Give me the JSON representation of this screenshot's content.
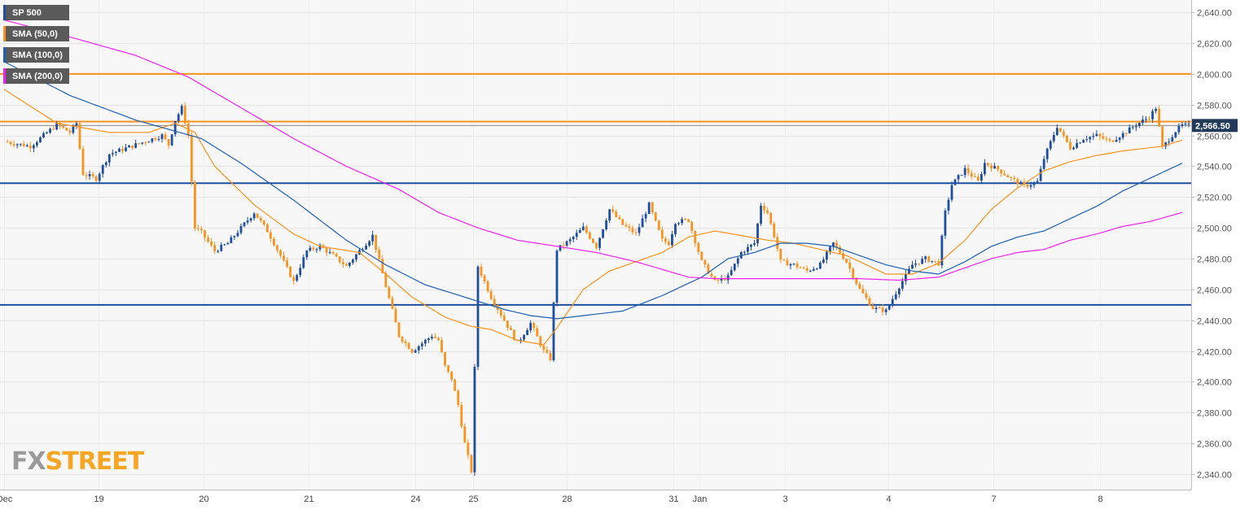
{
  "colors": {
    "up": "#1f4e9c",
    "down": "#f7931e",
    "sma50": "#f7931e",
    "sma100": "#1f5fae",
    "sma200": "#ee22ee",
    "resistance": "#f7931e",
    "support": "#1f4e9c",
    "price_badge": "#233a5a",
    "background": "#f7f7f7"
  },
  "legend": [
    {
      "label": "SP 500",
      "color": "#1f4e9c"
    },
    {
      "label": "SMA (50,0)",
      "color": "#f7931e"
    },
    {
      "label": "SMA (100,0)",
      "color": "#1f5fae"
    },
    {
      "label": "SMA (200,0)",
      "color": "#ee22ee"
    }
  ],
  "logo": {
    "fx": "FX",
    "street": "STREET"
  },
  "chart_data": {
    "type": "candlestick",
    "title": "SP 500",
    "ylim": [
      2330,
      2648
    ],
    "y_ticks": [
      "2,340.00",
      "2,360.00",
      "2,380.00",
      "2,400.00",
      "2,420.00",
      "2,440.00",
      "2,460.00",
      "2,480.00",
      "2,500.00",
      "2,520.00",
      "2,540.00",
      "2,560.00",
      "2,580.00",
      "2,600.00",
      "2,620.00",
      "2,640.00"
    ],
    "y_tick_values": [
      2340,
      2360,
      2380,
      2400,
      2420,
      2440,
      2460,
      2480,
      2500,
      2520,
      2540,
      2560,
      2580,
      2600,
      2620,
      2640
    ],
    "x_ticks": [
      {
        "label": "Dec",
        "t": 0
      },
      {
        "label": "19",
        "t": 14.3
      },
      {
        "label": "20",
        "t": 30.3
      },
      {
        "label": "21",
        "t": 46.3
      },
      {
        "label": "24",
        "t": 62.5
      },
      {
        "label": "25",
        "t": 71.3
      },
      {
        "label": "28",
        "t": 85.5
      },
      {
        "label": "31",
        "t": 101.7
      },
      {
        "label": "Jan",
        "t": 105.6
      },
      {
        "label": "3",
        "t": 118.7
      },
      {
        "label": "4",
        "t": 134.4
      },
      {
        "label": "7",
        "t": 150.3
      },
      {
        "label": "8",
        "t": 166.5
      }
    ],
    "t_max": 180,
    "last_price": "2,566.50",
    "last_value": 2566.5,
    "horizontal_levels": [
      {
        "value": 2600,
        "kind": "resistance"
      },
      {
        "value": 2569,
        "kind": "resistance"
      },
      {
        "value": 2529,
        "kind": "support"
      },
      {
        "value": 2450,
        "kind": "support"
      }
    ],
    "price_anchors": [
      [
        0,
        2556
      ],
      [
        4,
        2553
      ],
      [
        8,
        2567
      ],
      [
        10,
        2562
      ],
      [
        11,
        2568
      ],
      [
        12,
        2535
      ],
      [
        14,
        2532
      ],
      [
        16,
        2548
      ],
      [
        20,
        2554
      ],
      [
        24,
        2560
      ],
      [
        25,
        2554
      ],
      [
        26,
        2570
      ],
      [
        27,
        2578
      ],
      [
        28,
        2560
      ],
      [
        29,
        2500
      ],
      [
        30,
        2497
      ],
      [
        32,
        2485
      ],
      [
        34,
        2490
      ],
      [
        38,
        2510
      ],
      [
        40,
        2498
      ],
      [
        42,
        2482
      ],
      [
        44,
        2465
      ],
      [
        46,
        2485
      ],
      [
        48,
        2488
      ],
      [
        50,
        2482
      ],
      [
        52,
        2475
      ],
      [
        56,
        2495
      ],
      [
        58,
        2462
      ],
      [
        60,
        2430
      ],
      [
        62,
        2420
      ],
      [
        65,
        2430
      ],
      [
        66,
        2427
      ],
      [
        67,
        2410
      ],
      [
        68,
        2402
      ],
      [
        69,
        2385
      ],
      [
        70,
        2360
      ],
      [
        71,
        2342
      ],
      [
        72,
        2475
      ],
      [
        74,
        2455
      ],
      [
        76,
        2440
      ],
      [
        78,
        2425
      ],
      [
        80,
        2438
      ],
      [
        82,
        2420
      ],
      [
        83,
        2415
      ],
      [
        84,
        2486
      ],
      [
        86,
        2492
      ],
      [
        88,
        2500
      ],
      [
        90,
        2488
      ],
      [
        92,
        2512
      ],
      [
        94,
        2502
      ],
      [
        96,
        2496
      ],
      [
        98,
        2515
      ],
      [
        100,
        2492
      ],
      [
        101,
        2490
      ],
      [
        102,
        2504
      ],
      [
        104,
        2505
      ],
      [
        106,
        2478
      ],
      [
        108,
        2465
      ],
      [
        110,
        2468
      ],
      [
        112,
        2484
      ],
      [
        114,
        2490
      ],
      [
        115,
        2515
      ],
      [
        116,
        2510
      ],
      [
        117,
        2495
      ],
      [
        118,
        2478
      ],
      [
        120,
        2476
      ],
      [
        122,
        2472
      ],
      [
        124,
        2476
      ],
      [
        126,
        2490
      ],
      [
        128,
        2478
      ],
      [
        130,
        2460
      ],
      [
        132,
        2448
      ],
      [
        134,
        2446
      ],
      [
        136,
        2462
      ],
      [
        138,
        2476
      ],
      [
        140,
        2480
      ],
      [
        142,
        2477
      ],
      [
        143,
        2510
      ],
      [
        144,
        2528
      ],
      [
        146,
        2538
      ],
      [
        148,
        2530
      ],
      [
        149,
        2542
      ],
      [
        151,
        2538
      ],
      [
        153,
        2532
      ],
      [
        155,
        2527
      ],
      [
        157,
        2530
      ],
      [
        158,
        2545
      ],
      [
        160,
        2566
      ],
      [
        162,
        2552
      ],
      [
        164,
        2558
      ],
      [
        166,
        2560
      ],
      [
        168,
        2556
      ],
      [
        170,
        2561
      ],
      [
        172,
        2567
      ],
      [
        174,
        2572
      ],
      [
        175,
        2578
      ],
      [
        176,
        2552
      ],
      [
        178,
        2563
      ],
      [
        179,
        2566.5
      ]
    ],
    "sma50_anchors": [
      [
        0,
        2590
      ],
      [
        8,
        2568
      ],
      [
        16,
        2562
      ],
      [
        22,
        2562
      ],
      [
        26,
        2568
      ],
      [
        29,
        2562
      ],
      [
        32,
        2540
      ],
      [
        38,
        2515
      ],
      [
        44,
        2496
      ],
      [
        48,
        2488
      ],
      [
        54,
        2484
      ],
      [
        58,
        2470
      ],
      [
        62,
        2455
      ],
      [
        67,
        2442
      ],
      [
        71,
        2436
      ],
      [
        74,
        2434
      ],
      [
        78,
        2427
      ],
      [
        82,
        2424
      ],
      [
        84,
        2435
      ],
      [
        88,
        2460
      ],
      [
        92,
        2472
      ],
      [
        96,
        2478
      ],
      [
        100,
        2484
      ],
      [
        104,
        2494
      ],
      [
        108,
        2498
      ],
      [
        112,
        2495
      ],
      [
        116,
        2492
      ],
      [
        120,
        2490
      ],
      [
        124,
        2486
      ],
      [
        128,
        2482
      ],
      [
        132,
        2474
      ],
      [
        134,
        2470
      ],
      [
        138,
        2470
      ],
      [
        142,
        2477
      ],
      [
        146,
        2492
      ],
      [
        150,
        2512
      ],
      [
        154,
        2526
      ],
      [
        158,
        2537
      ],
      [
        162,
        2543
      ],
      [
        166,
        2547
      ],
      [
        170,
        2550
      ],
      [
        174,
        2552
      ],
      [
        176,
        2553
      ],
      [
        179,
        2557
      ]
    ],
    "sma100_anchors": [
      [
        0,
        2608
      ],
      [
        10,
        2586
      ],
      [
        20,
        2570
      ],
      [
        30,
        2558
      ],
      [
        36,
        2542
      ],
      [
        44,
        2518
      ],
      [
        52,
        2492
      ],
      [
        58,
        2476
      ],
      [
        64,
        2463
      ],
      [
        70,
        2455
      ],
      [
        76,
        2447
      ],
      [
        80,
        2443
      ],
      [
        84,
        2441
      ],
      [
        88,
        2443
      ],
      [
        94,
        2446
      ],
      [
        100,
        2456
      ],
      [
        106,
        2468
      ],
      [
        110,
        2480
      ],
      [
        114,
        2484
      ],
      [
        118,
        2490
      ],
      [
        122,
        2490
      ],
      [
        126,
        2488
      ],
      [
        130,
        2482
      ],
      [
        134,
        2476
      ],
      [
        138,
        2472
      ],
      [
        142,
        2470
      ],
      [
        146,
        2478
      ],
      [
        150,
        2488
      ],
      [
        154,
        2494
      ],
      [
        158,
        2498
      ],
      [
        162,
        2506
      ],
      [
        166,
        2514
      ],
      [
        170,
        2524
      ],
      [
        174,
        2532
      ],
      [
        179,
        2542
      ]
    ],
    "sma200_anchors": [
      [
        0,
        2635
      ],
      [
        10,
        2624
      ],
      [
        20,
        2612
      ],
      [
        28,
        2598
      ],
      [
        36,
        2578
      ],
      [
        44,
        2558
      ],
      [
        52,
        2540
      ],
      [
        60,
        2525
      ],
      [
        66,
        2510
      ],
      [
        72,
        2500
      ],
      [
        78,
        2492
      ],
      [
        84,
        2488
      ],
      [
        90,
        2484
      ],
      [
        96,
        2478
      ],
      [
        100,
        2473
      ],
      [
        104,
        2468
      ],
      [
        108,
        2467
      ],
      [
        116,
        2467
      ],
      [
        124,
        2467
      ],
      [
        130,
        2467
      ],
      [
        136,
        2466
      ],
      [
        142,
        2468
      ],
      [
        146,
        2474
      ],
      [
        150,
        2480
      ],
      [
        154,
        2484
      ],
      [
        158,
        2486
      ],
      [
        162,
        2492
      ],
      [
        166,
        2496
      ],
      [
        170,
        2501
      ],
      [
        174,
        2504
      ],
      [
        179,
        2510
      ]
    ]
  }
}
